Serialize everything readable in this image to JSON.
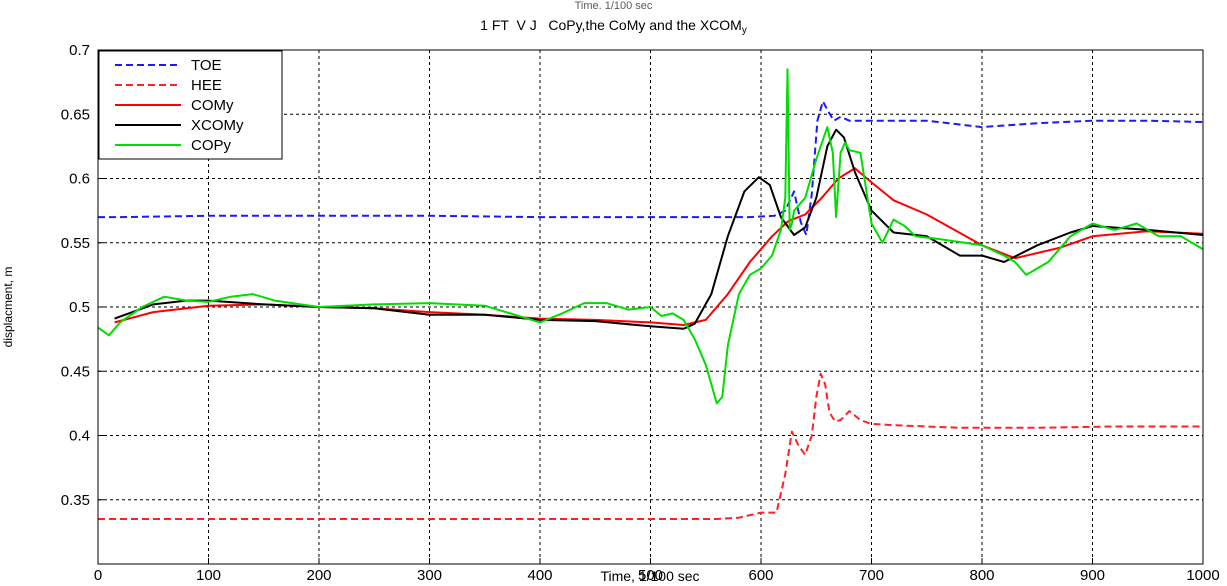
{
  "chart_data": {
    "type": "line",
    "top_title": "Time, 1/100 sec",
    "title_prefix": "1 FT  V J   CoPy,the CoMy and the XCOM",
    "title_subscript": "y",
    "xlabel": "Time, 1/100 sec",
    "ylabel": "displacment, m",
    "xlim": [
      0,
      1000
    ],
    "ylim": [
      0.3,
      0.7
    ],
    "xticks": [
      "0",
      "100",
      "200",
      "300",
      "400",
      "500",
      "600",
      "700",
      "800",
      "900",
      "1000"
    ],
    "yticks": [
      "0.35",
      "0.4",
      "0.45",
      "0.5",
      "0.55",
      "0.6",
      "0.65",
      "0.7"
    ],
    "grid": true,
    "legend_position": "top-left",
    "series": [
      {
        "name": "TOE",
        "color": "#1a1aff",
        "style": "dashed",
        "x": [
          0,
          20,
          100,
          200,
          300,
          400,
          500,
          590,
          612,
          622,
          630,
          636,
          641,
          646,
          651,
          656,
          661,
          666,
          672,
          680,
          700,
          750,
          800,
          850,
          900,
          950,
          1000
        ],
        "y": [
          0.57,
          0.57,
          0.571,
          0.571,
          0.571,
          0.57,
          0.57,
          0.57,
          0.571,
          0.575,
          0.59,
          0.566,
          0.556,
          0.588,
          0.645,
          0.66,
          0.652,
          0.645,
          0.648,
          0.645,
          0.645,
          0.645,
          0.64,
          0.643,
          0.645,
          0.645,
          0.644
        ]
      },
      {
        "name": "HEE",
        "color": "#ff2020",
        "style": "dashed",
        "x": [
          0,
          100,
          200,
          300,
          400,
          500,
          560,
          580,
          600,
          614,
          622,
          628,
          634,
          640,
          646,
          650,
          654,
          658,
          662,
          667,
          672,
          680,
          690,
          700,
          720,
          780,
          850,
          920,
          1000
        ],
        "y": [
          0.335,
          0.335,
          0.335,
          0.335,
          0.335,
          0.335,
          0.335,
          0.336,
          0.34,
          0.34,
          0.37,
          0.403,
          0.392,
          0.385,
          0.4,
          0.43,
          0.448,
          0.44,
          0.418,
          0.411,
          0.412,
          0.419,
          0.412,
          0.409,
          0.408,
          0.406,
          0.406,
          0.407,
          0.407
        ]
      },
      {
        "name": "COMy",
        "color": "#ff0000",
        "style": "solid",
        "x": [
          15,
          50,
          100,
          150,
          200,
          250,
          300,
          350,
          400,
          450,
          500,
          530,
          550,
          570,
          590,
          610,
          625,
          640,
          655,
          670,
          685,
          700,
          720,
          750,
          800,
          830,
          870,
          900,
          950,
          1000
        ],
        "y": [
          0.488,
          0.496,
          0.501,
          0.502,
          0.5,
          0.499,
          0.496,
          0.494,
          0.491,
          0.49,
          0.488,
          0.486,
          0.49,
          0.51,
          0.535,
          0.555,
          0.567,
          0.572,
          0.585,
          0.6,
          0.608,
          0.597,
          0.583,
          0.572,
          0.548,
          0.538,
          0.546,
          0.555,
          0.559,
          0.557
        ]
      },
      {
        "name": "XCOMy",
        "color": "#000000",
        "style": "solid",
        "x": [
          15,
          50,
          80,
          100,
          150,
          200,
          250,
          300,
          350,
          400,
          450,
          500,
          530,
          540,
          555,
          570,
          585,
          598,
          608,
          618,
          630,
          640,
          650,
          660,
          668,
          675,
          685,
          700,
          720,
          750,
          780,
          800,
          820,
          850,
          880,
          900,
          950,
          1000
        ],
        "y": [
          0.491,
          0.502,
          0.505,
          0.505,
          0.502,
          0.5,
          0.499,
          0.494,
          0.494,
          0.49,
          0.489,
          0.485,
          0.483,
          0.487,
          0.51,
          0.555,
          0.59,
          0.601,
          0.595,
          0.57,
          0.556,
          0.562,
          0.585,
          0.625,
          0.638,
          0.632,
          0.605,
          0.575,
          0.558,
          0.555,
          0.54,
          0.54,
          0.535,
          0.548,
          0.558,
          0.563,
          0.56,
          0.556
        ]
      },
      {
        "name": "COPy",
        "color": "#00dd00",
        "style": "solid",
        "x": [
          0,
          10,
          20,
          40,
          60,
          80,
          100,
          120,
          140,
          160,
          200,
          250,
          300,
          350,
          400,
          420,
          440,
          460,
          480,
          500,
          510,
          520,
          530,
          540,
          550,
          560,
          565,
          570,
          580,
          590,
          600,
          610,
          618,
          622,
          624,
          626,
          628,
          630,
          640,
          650,
          660,
          665,
          668,
          672,
          676,
          680,
          690,
          700,
          710,
          720,
          730,
          740,
          760,
          800,
          820,
          830,
          840,
          860,
          880,
          900,
          920,
          940,
          960,
          980,
          1000
        ],
        "y": [
          0.484,
          0.478,
          0.488,
          0.5,
          0.508,
          0.505,
          0.504,
          0.508,
          0.51,
          0.505,
          0.5,
          0.502,
          0.503,
          0.501,
          0.488,
          0.495,
          0.503,
          0.503,
          0.498,
          0.5,
          0.493,
          0.495,
          0.49,
          0.475,
          0.455,
          0.425,
          0.43,
          0.47,
          0.51,
          0.525,
          0.53,
          0.54,
          0.56,
          0.585,
          0.685,
          0.56,
          0.565,
          0.575,
          0.585,
          0.615,
          0.64,
          0.62,
          0.57,
          0.62,
          0.628,
          0.622,
          0.62,
          0.565,
          0.55,
          0.568,
          0.563,
          0.555,
          0.553,
          0.548,
          0.54,
          0.535,
          0.525,
          0.535,
          0.555,
          0.565,
          0.56,
          0.565,
          0.555,
          0.555,
          0.545
        ]
      }
    ]
  }
}
